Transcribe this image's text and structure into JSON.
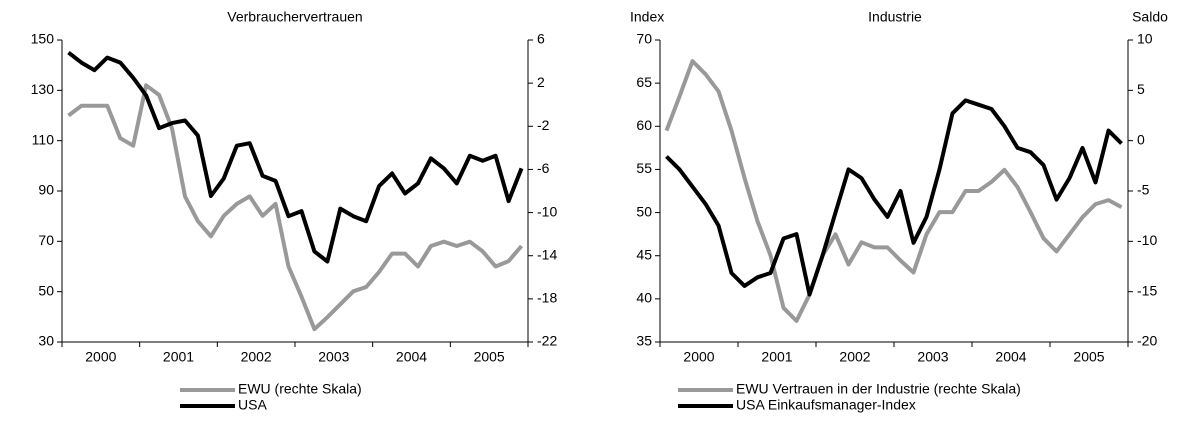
{
  "chart_data": [
    {
      "type": "line",
      "title": "Verbrauchervertrauen",
      "categories": [
        null,
        null,
        null,
        "2000",
        null,
        null,
        null,
        null,
        null,
        "2001",
        null,
        null,
        null,
        null,
        null,
        "2002",
        null,
        null,
        null,
        null,
        null,
        "2003",
        null,
        null,
        null,
        null,
        null,
        "2004",
        null,
        null,
        null,
        null,
        null,
        "2005",
        null,
        null
      ],
      "ylim": [
        30,
        150
      ],
      "yticks": [
        30,
        50,
        70,
        90,
        110,
        130,
        150
      ],
      "y2lim": [
        -22,
        6
      ],
      "y2ticks": [
        -22,
        -18,
        -14,
        -10,
        -6,
        -2,
        2,
        6
      ],
      "series": [
        {
          "name": "EWU (rechte Skala)",
          "color": "#999999",
          "axis": "y2",
          "values": [
            -1,
            -0.1,
            -0.1,
            -0.1,
            -3.1,
            -3.8,
            1.8,
            0.9,
            -2.2,
            -8.5,
            -10.8,
            -12.2,
            -10.3,
            -9.2,
            -8.5,
            -10.3,
            -9.2,
            -15,
            -17.8,
            -20.8,
            -19.7,
            -18.5,
            -17.3,
            -16.9,
            -15.5,
            -13.8,
            -13.8,
            -15,
            -13.1,
            -12.7,
            -13.1,
            -12.7,
            -13.6,
            -15,
            -14.5,
            -13.1
          ]
        },
        {
          "name": "USA",
          "color": "#000000",
          "axis": "y",
          "values": [
            145,
            141,
            138,
            143,
            141,
            135,
            128,
            115,
            117,
            118,
            112,
            88,
            95,
            108,
            109,
            96,
            94,
            80,
            82,
            66,
            62,
            83,
            80,
            78,
            92,
            97,
            89,
            93,
            103,
            99,
            93,
            104,
            102,
            104,
            86,
            99
          ]
        }
      ]
    },
    {
      "type": "line",
      "title": "Industrie",
      "ylabel": "Index",
      "y2label": "Saldo",
      "categories": [
        null,
        null,
        null,
        "2000",
        null,
        null,
        null,
        null,
        null,
        "2001",
        null,
        null,
        null,
        null,
        null,
        "2002",
        null,
        null,
        null,
        null,
        null,
        "2003",
        null,
        null,
        null,
        null,
        null,
        "2004",
        null,
        null,
        null,
        null,
        null,
        "2005",
        null,
        null
      ],
      "ylim": [
        35,
        70
      ],
      "yticks": [
        35,
        40,
        45,
        50,
        55,
        60,
        65,
        70
      ],
      "y2lim": [
        -20,
        10
      ],
      "y2ticks": [
        -20,
        -15,
        -10,
        -5,
        0,
        5,
        10
      ],
      "series": [
        {
          "name": "EWU Vertrauen in der Industrie (rechte Skala)",
          "color": "#999999",
          "axis": "y2",
          "values": [
            1.0,
            4.4,
            7.9,
            6.6,
            4.9,
            1.0,
            -3.7,
            -8.0,
            -11.4,
            -16.6,
            -17.9,
            -15.3,
            -11.4,
            -9.3,
            -12.3,
            -10.1,
            -10.6,
            -10.6,
            -11.9,
            -13.1,
            -9.3,
            -7.1,
            -7.1,
            -5.0,
            -5.0,
            -4.1,
            -2.9,
            -4.6,
            -7.1,
            -9.7,
            -11.0,
            -9.3,
            -7.6,
            -6.3,
            -5.9,
            -6.6
          ]
        },
        {
          "name": "USA Einkaufsmanager-Index",
          "color": "#000000",
          "axis": "y",
          "values": [
            56.5,
            55,
            53,
            51,
            48.5,
            43,
            41.5,
            42.5,
            43,
            47,
            47.5,
            40.5,
            45,
            50,
            55,
            54,
            51.5,
            49.5,
            52.5,
            46.5,
            49.5,
            55,
            61.5,
            63,
            62.5,
            62,
            60,
            57.5,
            57,
            55.5,
            51.5,
            54,
            57.5,
            53.5,
            59.5,
            58
          ]
        }
      ]
    }
  ]
}
